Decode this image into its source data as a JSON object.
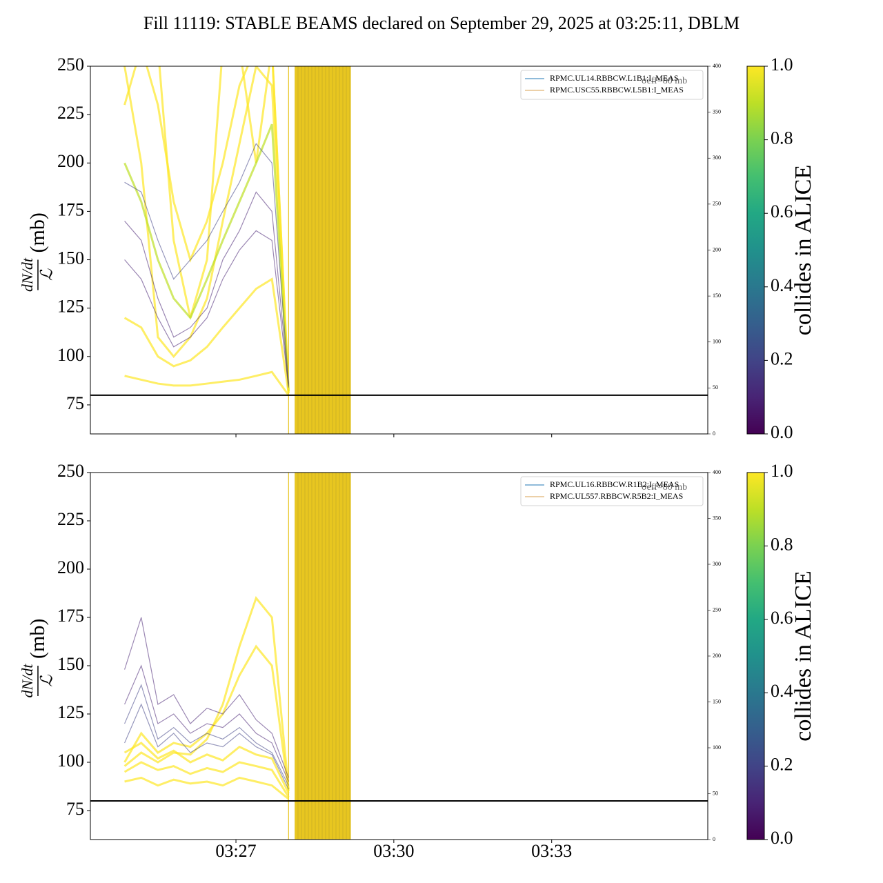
{
  "title": "Fill 11119: STABLE BEAMS declared on September 29, 2025 at 03:25:11, DBLM",
  "colorbar": {
    "label": "collides in ALICE",
    "colormap": "viridis",
    "lim": [
      0,
      1
    ],
    "ticks": [
      {
        "value": 0,
        "label": "0.0"
      },
      {
        "value": 0.2,
        "label": "0.2"
      },
      {
        "value": 0.4,
        "label": "0.4"
      },
      {
        "value": 0.6,
        "label": "0.6"
      },
      {
        "value": 0.8,
        "label": "0.8"
      },
      {
        "value": 1,
        "label": "1.0"
      }
    ]
  },
  "chart_data": [
    {
      "type": "line",
      "ylabel": {
        "numerator": "dN/dt",
        "denominator": "ℒ",
        "unit": "(mb)"
      },
      "xlim": [
        "03:24:14",
        "03:35:58"
      ],
      "xticks": [
        "03:27",
        "03:30",
        "03:33"
      ],
      "show_xtick_labels": false,
      "ylim": [
        60,
        250
      ],
      "yticks": [
        75,
        100,
        125,
        150,
        175,
        200,
        225,
        250
      ],
      "y2lim": [
        0,
        400
      ],
      "y2ticks": [
        0,
        50,
        100,
        150,
        200,
        250,
        300,
        350,
        400
      ],
      "threshold": {
        "value": 80,
        "label": "σeff=80 mb"
      },
      "vlines": [
        "03:28:00"
      ],
      "vbands": [
        [
          "03:28:07",
          "03:29:11"
        ]
      ],
      "band_color": "#e8c620",
      "legend": "upper right",
      "series": [
        {
          "name": "RPMC.UL14.RBBCW.L1B1:I_MEAS",
          "color": "#1f77b4",
          "axis": "y2",
          "x": [
            "03:24:46",
            "03:35:25"
          ],
          "values": [
            0,
            0
          ]
        },
        {
          "name": "RPMC.USC55.RBBCW.L5B1:I_MEAS",
          "color": "#d8a050",
          "axis": "y2",
          "x": [
            "03:24:46",
            "03:35:25"
          ],
          "values": [
            0,
            0
          ]
        }
      ],
      "trace_x": [
        "03:24:53",
        "03:25:12",
        "03:25:31",
        "03:25:49",
        "03:26:08",
        "03:26:27",
        "03:26:45",
        "03:27:04",
        "03:27:23",
        "03:27:41",
        "03:28:00"
      ],
      "traces": [
        {
          "collides": 1,
          "values": [
            260,
            260,
            230,
            180,
            150,
            170,
            200,
            240,
            260,
            260,
            82
          ]
        },
        {
          "collides": 1,
          "values": [
            250,
            200,
            110,
            100,
            110,
            130,
            170,
            210,
            250,
            240,
            81
          ]
        },
        {
          "collides": 1,
          "values": [
            230,
            260,
            260,
            160,
            120,
            150,
            260,
            260,
            200,
            260,
            83
          ]
        },
        {
          "collides": 0.9,
          "values": [
            200,
            180,
            150,
            130,
            120,
            140,
            160,
            180,
            200,
            220,
            82
          ]
        },
        {
          "collides": 1,
          "values": [
            90,
            88,
            86,
            85,
            85,
            86,
            87,
            88,
            90,
            92,
            80
          ]
        },
        {
          "collides": 0.95,
          "values": [
            120,
            115,
            100,
            95,
            98,
            105,
            115,
            125,
            135,
            140,
            81
          ]
        },
        {
          "collides": 0.2,
          "values": [
            190,
            185,
            160,
            140,
            150,
            160,
            175,
            190,
            210,
            200,
            86
          ]
        },
        {
          "collides": 0.1,
          "values": [
            170,
            160,
            130,
            110,
            115,
            125,
            150,
            165,
            185,
            175,
            85
          ]
        },
        {
          "collides": 0.05,
          "values": [
            150,
            140,
            120,
            105,
            110,
            120,
            140,
            155,
            165,
            160,
            84
          ]
        }
      ]
    },
    {
      "type": "line",
      "ylabel": {
        "numerator": "dN/dt",
        "denominator": "ℒ",
        "unit": "(mb)"
      },
      "xlim": [
        "03:24:14",
        "03:35:58"
      ],
      "xticks": [
        "03:27",
        "03:30",
        "03:33"
      ],
      "show_xtick_labels": true,
      "ylim": [
        60,
        250
      ],
      "yticks": [
        75,
        100,
        125,
        150,
        175,
        200,
        225,
        250
      ],
      "y2lim": [
        0,
        400
      ],
      "y2ticks": [
        0,
        50,
        100,
        150,
        200,
        250,
        300,
        350,
        400
      ],
      "threshold": {
        "value": 80,
        "label": "σeff=80 mb"
      },
      "vlines": [
        "03:28:00"
      ],
      "vbands": [
        [
          "03:28:07",
          "03:29:11"
        ]
      ],
      "band_color": "#e8c620",
      "legend": "upper right",
      "series": [
        {
          "name": "RPMC.UL16.RBBCW.R1B2:I_MEAS",
          "color": "#1f77b4",
          "axis": "y2",
          "x": [
            "03:24:46",
            "03:35:25"
          ],
          "values": [
            0,
            0
          ]
        },
        {
          "name": "RPMC.UL557.RBBCW.R5B2:I_MEAS",
          "color": "#d8a050",
          "axis": "y2",
          "x": [
            "03:24:46",
            "03:35:25"
          ],
          "values": [
            0,
            0
          ]
        }
      ],
      "trace_x": [
        "03:24:53",
        "03:25:12",
        "03:25:31",
        "03:25:49",
        "03:26:08",
        "03:26:27",
        "03:26:45",
        "03:27:04",
        "03:27:23",
        "03:27:41",
        "03:28:00"
      ],
      "traces": [
        {
          "collides": 0.95,
          "values": [
            100,
            115,
            105,
            110,
            108,
            115,
            125,
            145,
            160,
            150,
            85
          ]
        },
        {
          "collides": 1,
          "values": [
            98,
            105,
            100,
            105,
            104,
            112,
            130,
            160,
            185,
            175,
            86
          ]
        },
        {
          "collides": 1,
          "values": [
            95,
            100,
            96,
            98,
            94,
            97,
            95,
            100,
            98,
            96,
            82
          ]
        },
        {
          "collides": 1,
          "values": [
            105,
            110,
            102,
            106,
            100,
            104,
            101,
            108,
            104,
            102,
            84
          ]
        },
        {
          "collides": 1,
          "values": [
            90,
            92,
            88,
            91,
            89,
            90,
            88,
            92,
            90,
            88,
            81
          ]
        },
        {
          "collides": 0.2,
          "values": [
            110,
            130,
            108,
            115,
            105,
            110,
            108,
            115,
            108,
            104,
            86
          ]
        },
        {
          "collides": 0.15,
          "values": [
            120,
            140,
            112,
            118,
            110,
            115,
            112,
            118,
            110,
            105,
            88
          ]
        },
        {
          "collides": 0.05,
          "values": [
            130,
            150,
            120,
            125,
            115,
            120,
            118,
            125,
            115,
            110,
            90
          ]
        },
        {
          "collides": 0.1,
          "values": [
            148,
            175,
            130,
            135,
            120,
            128,
            125,
            135,
            122,
            115,
            92
          ]
        }
      ]
    }
  ]
}
